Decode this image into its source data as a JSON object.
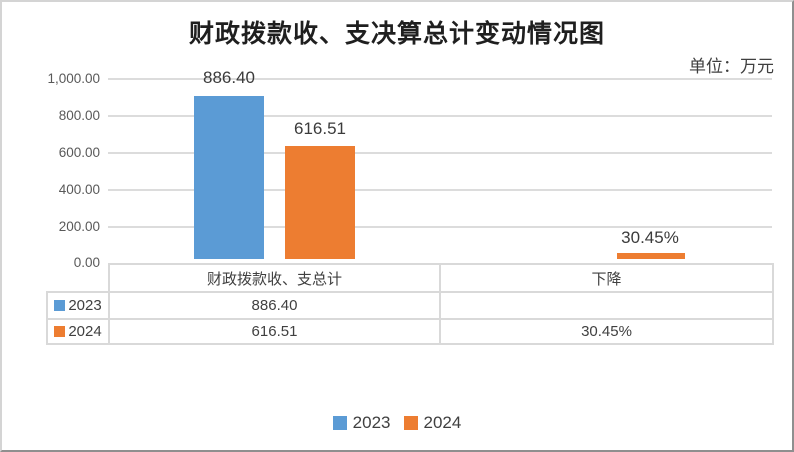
{
  "chart": {
    "title": "财政拨款收、支决算总计变动情况图",
    "unit_label": "单位：万元"
  },
  "chart_data": {
    "type": "bar",
    "title": "财政拨款收、支决算总计变动情况图",
    "unit": "万元",
    "categories": [
      "财政拨款收、支总计",
      "下降"
    ],
    "series": [
      {
        "name": "2023",
        "color": "#5B9BD5",
        "values": [
          886.4,
          null
        ],
        "data_labels": [
          "886.40",
          ""
        ]
      },
      {
        "name": "2024",
        "color": "#ED7D31",
        "values": [
          616.51,
          30.45
        ],
        "data_labels": [
          "616.51",
          "30.45%"
        ]
      }
    ],
    "ylim": [
      0,
      1000
    ],
    "ytick_labels": [
      "1,000.00",
      "800.00",
      "600.00",
      "400.00",
      "200.00",
      "0.00"
    ],
    "grid": true,
    "legend_position": "bottom",
    "legend": [
      "2023",
      "2024"
    ]
  },
  "data_table": {
    "col_headers": [
      "财政拨款收、支总计",
      "下降"
    ],
    "rows": [
      {
        "name": "2023",
        "values": [
          "886.40",
          ""
        ]
      },
      {
        "name": "2024",
        "values": [
          "616.51",
          "30.45%"
        ]
      }
    ]
  },
  "colors": {
    "series_2023": "#5B9BD5",
    "series_2024": "#ED7D31",
    "gridline": "#DCDCDC",
    "table_border": "#D9D9D9",
    "axis_text": "#595959",
    "label_text": "#404040"
  }
}
